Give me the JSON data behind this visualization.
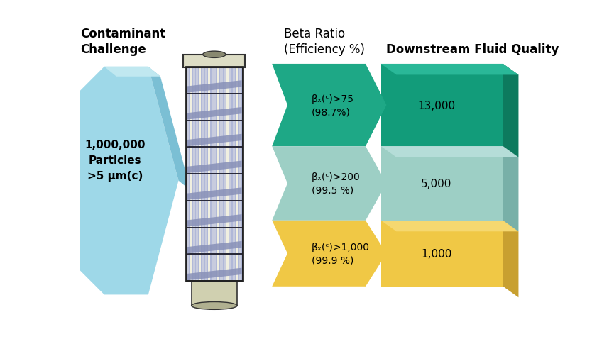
{
  "title_left": "Contaminant\nChallenge",
  "title_beta": "Beta Ratio\n(Efficiency %)",
  "title_downstream": "Downstream Fluid Quality",
  "left_label": "1,000,000\nParticles\n>5 μm(c)",
  "downstream_labels": [
    "13,000",
    "5,000",
    "1,000"
  ],
  "left_face_color": "#9ED8E8",
  "left_side_color": "#7BBFD4",
  "left_top_color": "#C0E8F0",
  "beta_colors": [
    "#1EA886",
    "#9DCFC5",
    "#F0C845"
  ],
  "downstream_face_colors": [
    "#129C7A",
    "#9DCFC5",
    "#F0C845"
  ],
  "downstream_side_colors": [
    "#0D7A5E",
    "#78B0A8",
    "#C8A030"
  ],
  "downstream_top_colors": [
    "#2AB898",
    "#B5DDD8",
    "#F5D870"
  ],
  "background_color": "#FFFFFF",
  "title_fontsize": 12,
  "label_fontsize": 11,
  "beta_label_fontsize": 10
}
